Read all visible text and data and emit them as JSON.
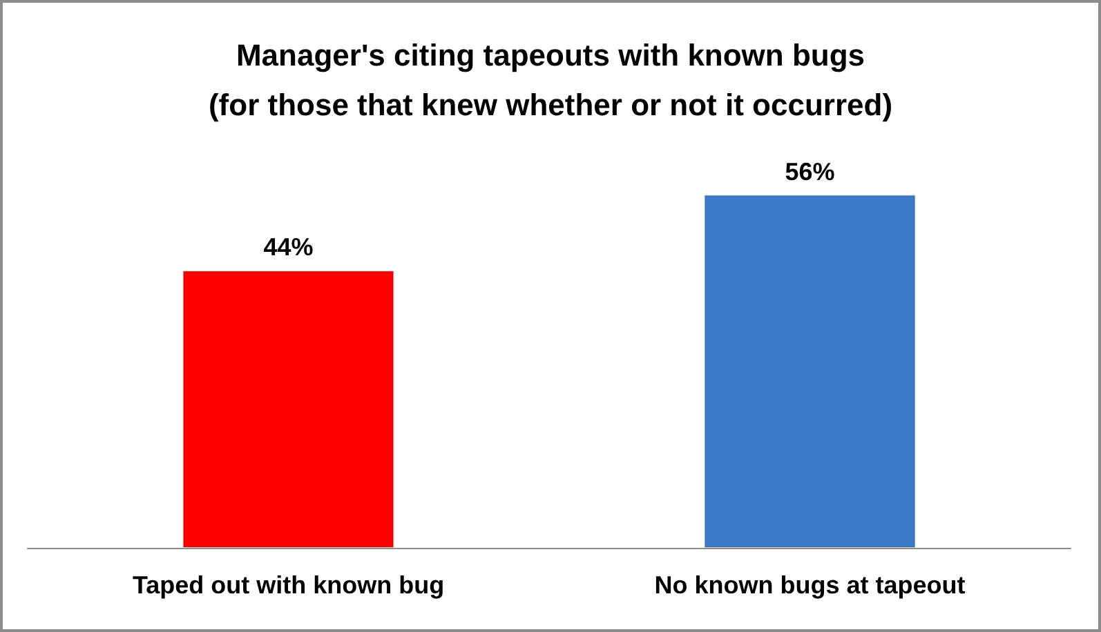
{
  "chart_data": {
    "type": "bar",
    "title": "Manager's citing tapeouts with known bugs",
    "subtitle": "(for those that knew whether or not it occurred)",
    "categories": [
      "Taped out with known bug",
      "No known bugs at tapeout"
    ],
    "values": [
      44,
      56
    ],
    "colors": [
      "#fe0000",
      "#3f7ac9"
    ],
    "value_labels": [
      "44%",
      "56%"
    ]
  }
}
